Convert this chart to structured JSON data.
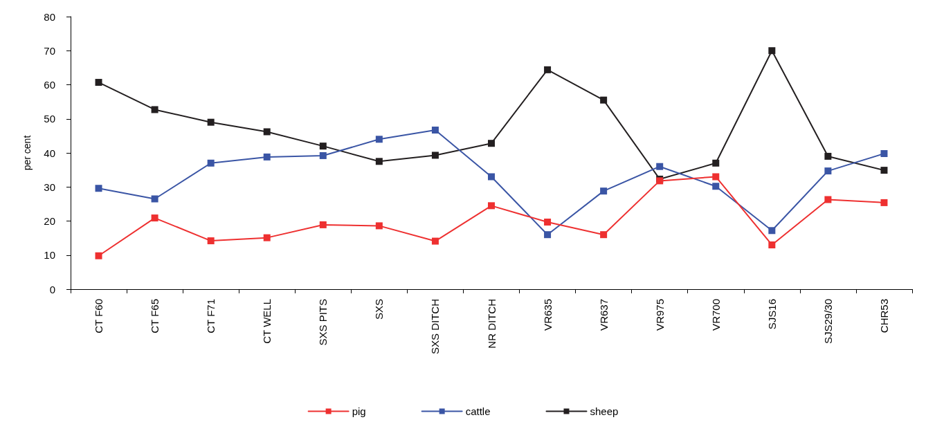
{
  "chart_data": {
    "type": "line",
    "ylabel": "per cent",
    "categories": [
      "CT F60",
      "CT F65",
      "CT F71",
      "CT WELL",
      "SXS PITS",
      "SXS",
      "SXS DITCH",
      "NR DITCH",
      "VR635",
      "VR637",
      "VR975",
      "VR700",
      "SJS16",
      "SJS29/30",
      "CHR53"
    ],
    "series": [
      {
        "name": "pig",
        "color": "#ee3030",
        "values": [
          9.8,
          20.9,
          14.2,
          15.1,
          18.9,
          18.6,
          14.1,
          24.5,
          19.7,
          16,
          31.8,
          33,
          13,
          26.3,
          25.4
        ]
      },
      {
        "name": "cattle",
        "color": "#3a55a5",
        "values": [
          29.6,
          26.5,
          37,
          38.8,
          39.2,
          44,
          46.7,
          33,
          16,
          28.8,
          36,
          30.2,
          17.2,
          34.7,
          39.8
        ]
      },
      {
        "name": "sheep",
        "color": "#231f20",
        "values": [
          60.7,
          52.7,
          49,
          46.2,
          42,
          37.5,
          39.3,
          42.8,
          64.4,
          55.5,
          32.3,
          37,
          70,
          39,
          34.9
        ]
      }
    ],
    "ylim": [
      0,
      80
    ],
    "yticks": [
      0,
      10,
      20,
      30,
      40,
      50,
      60,
      70,
      80
    ],
    "grid": false,
    "legend": "bottom",
    "marker": "square",
    "line_style": "solid"
  }
}
